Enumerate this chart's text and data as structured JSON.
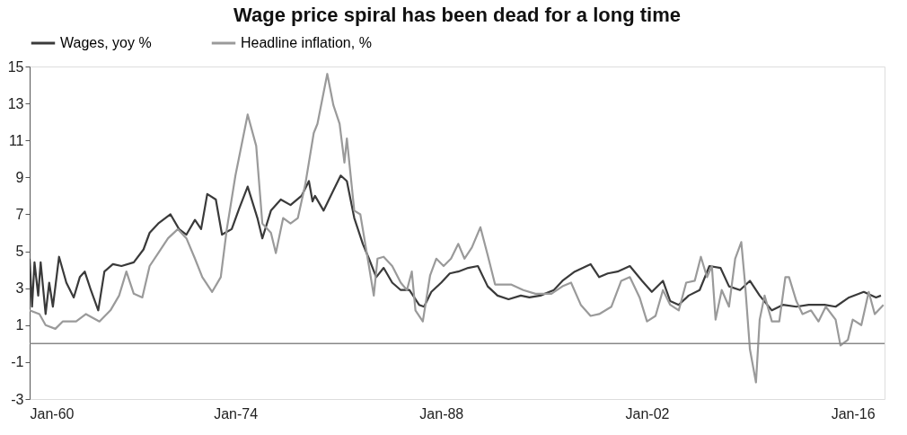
{
  "chart_data": {
    "type": "line",
    "title": "Wage price spiral has been dead for a long time",
    "xlim": [
      "1960-01",
      "2018-03"
    ],
    "xticks": [
      {
        "value": "1960-01",
        "label": "Jan-60"
      },
      {
        "value": "1974-01",
        "label": "Jan-74"
      },
      {
        "value": "1988-01",
        "label": "Jan-88"
      },
      {
        "value": "2002-01",
        "label": "Jan-02"
      },
      {
        "value": "2016-01",
        "label": "Jan-16"
      }
    ],
    "ylim": [
      -3,
      15
    ],
    "yticks": [
      -3,
      -1,
      1,
      3,
      5,
      7,
      9,
      11,
      13,
      15
    ],
    "grid": false,
    "legend": "top",
    "marker": "none",
    "line_style": "solid",
    "ref_lines": [
      {
        "axis": "y",
        "value": 0,
        "color": "#888888"
      }
    ],
    "series": [
      {
        "name": "Wages, yoy %",
        "color": "#3a3a3a",
        "x": [
          "1960-01",
          "1960-03",
          "1960-05",
          "1960-08",
          "1960-10",
          "1961-02",
          "1961-05",
          "1961-08",
          "1962-01",
          "1962-07",
          "1963-01",
          "1963-06",
          "1963-10",
          "1964-03",
          "1964-09",
          "1965-02",
          "1965-09",
          "1966-04",
          "1967-02",
          "1967-10",
          "1968-03",
          "1968-10",
          "1969-08",
          "1970-03",
          "1970-09",
          "1971-04",
          "1971-09",
          "1972-02",
          "1972-09",
          "1973-02",
          "1973-10",
          "1974-04",
          "1974-11",
          "1975-07",
          "1975-11",
          "1976-06",
          "1977-02",
          "1977-10",
          "1978-07",
          "1979-01",
          "1979-04",
          "1979-06",
          "1980-01",
          "1980-09",
          "1981-03",
          "1981-08",
          "1982-02",
          "1982-09",
          "1983-02",
          "1983-08",
          "1984-02",
          "1984-09",
          "1985-04",
          "1985-11",
          "1986-07",
          "1986-11",
          "1987-05",
          "1988-01",
          "1988-08",
          "1989-03",
          "1989-11",
          "1990-07",
          "1991-03",
          "1991-11",
          "1992-08",
          "1993-06",
          "1994-01",
          "1994-10",
          "1995-09",
          "1996-04",
          "1997-02",
          "1998-03",
          "1998-10",
          "1999-05",
          "2000-01",
          "2000-11",
          "2001-09",
          "2002-05",
          "2003-02",
          "2003-08",
          "2004-03",
          "2004-11",
          "2005-08",
          "2006-04",
          "2007-01",
          "2007-08",
          "2008-05",
          "2009-01",
          "2009-09",
          "2010-07",
          "2011-04",
          "2012-03",
          "2013-01",
          "2014-02",
          "2014-11",
          "2015-10",
          "2016-10",
          "2017-08",
          "2017-12"
        ],
        "values": [
          4.6,
          2.0,
          4.4,
          2.6,
          4.4,
          1.6,
          3.3,
          2.0,
          4.7,
          3.3,
          2.5,
          3.6,
          3.9,
          2.9,
          1.8,
          3.9,
          4.3,
          4.2,
          4.4,
          5.1,
          6.0,
          6.5,
          7.0,
          6.2,
          5.9,
          6.7,
          6.2,
          8.1,
          7.8,
          5.9,
          6.2,
          7.3,
          8.5,
          6.8,
          5.7,
          7.2,
          7.8,
          7.5,
          8.0,
          8.8,
          7.7,
          8.0,
          7.2,
          8.3,
          9.1,
          8.8,
          6.8,
          5.4,
          4.6,
          3.6,
          4.1,
          3.3,
          2.9,
          2.9,
          2.1,
          2.0,
          2.8,
          3.3,
          3.8,
          3.9,
          4.1,
          4.2,
          3.1,
          2.6,
          2.4,
          2.6,
          2.5,
          2.6,
          2.9,
          3.4,
          3.9,
          4.3,
          3.6,
          3.8,
          3.9,
          4.2,
          3.4,
          2.8,
          3.4,
          2.3,
          2.1,
          2.6,
          2.9,
          4.2,
          4.1,
          3.1,
          2.9,
          3.4,
          2.6,
          1.8,
          2.1,
          2.0,
          2.1,
          2.1,
          2.0,
          2.5,
          2.8,
          2.5,
          2.6
        ]
      },
      {
        "name": "Headline inflation, %",
        "color": "#9a9a9a",
        "x": [
          "1960-01",
          "1960-09",
          "1961-02",
          "1961-10",
          "1962-04",
          "1963-03",
          "1963-11",
          "1964-10",
          "1965-07",
          "1966-02",
          "1966-08",
          "1967-02",
          "1967-09",
          "1968-03",
          "1968-10",
          "1969-06",
          "1970-02",
          "1970-09",
          "1971-04",
          "1971-10",
          "1972-06",
          "1973-01",
          "1973-06",
          "1974-01",
          "1974-11",
          "1975-06",
          "1975-11",
          "1976-06",
          "1976-10",
          "1977-04",
          "1977-10",
          "1978-04",
          "1978-10",
          "1979-05",
          "1979-08",
          "1980-04",
          "1980-09",
          "1981-02",
          "1981-06",
          "1981-08",
          "1981-10",
          "1982-02",
          "1982-07",
          "1983-01",
          "1983-06",
          "1983-09",
          "1984-02",
          "1984-09",
          "1985-04",
          "1985-09",
          "1986-01",
          "1986-04",
          "1986-10",
          "1987-04",
          "1987-09",
          "1988-03",
          "1988-09",
          "1989-03",
          "1989-08",
          "1990-02",
          "1990-09",
          "1991-03",
          "1991-09",
          "1992-10",
          "1993-08",
          "1994-06",
          "1995-07",
          "1996-04",
          "1996-11",
          "1997-07",
          "1998-03",
          "1998-10",
          "1999-08",
          "2000-04",
          "2000-11",
          "2001-07",
          "2002-01",
          "2002-08",
          "2003-02",
          "2003-08",
          "2004-03",
          "2004-09",
          "2005-04",
          "2005-09",
          "2006-02",
          "2006-06",
          "2006-09",
          "2007-02",
          "2007-08",
          "2008-01",
          "2008-06",
          "2008-09",
          "2009-01",
          "2009-06",
          "2009-09",
          "2010-01",
          "2010-07",
          "2011-01",
          "2011-06",
          "2011-09",
          "2012-03",
          "2012-08",
          "2013-03",
          "2013-09",
          "2014-03",
          "2014-11",
          "2015-03",
          "2015-09",
          "2016-01",
          "2016-08",
          "2017-02",
          "2017-07",
          "2018-02"
        ],
        "values": [
          1.8,
          1.6,
          1.0,
          0.8,
          1.2,
          1.2,
          1.6,
          1.2,
          1.8,
          2.6,
          3.9,
          2.7,
          2.5,
          4.2,
          4.9,
          5.7,
          6.2,
          5.7,
          4.6,
          3.6,
          2.8,
          3.6,
          6.2,
          9.1,
          12.4,
          10.7,
          6.5,
          6.0,
          4.9,
          6.8,
          6.5,
          6.8,
          8.6,
          11.4,
          11.9,
          14.6,
          12.9,
          11.9,
          9.8,
          11.1,
          9.8,
          7.2,
          7.0,
          4.6,
          2.6,
          4.6,
          4.7,
          4.2,
          3.3,
          2.9,
          3.9,
          1.8,
          1.2,
          3.7,
          4.6,
          4.2,
          4.6,
          5.4,
          4.6,
          5.2,
          6.3,
          4.8,
          3.2,
          3.2,
          2.9,
          2.7,
          2.7,
          3.1,
          3.3,
          2.1,
          1.5,
          1.6,
          2.0,
          3.4,
          3.6,
          2.5,
          1.2,
          1.5,
          2.9,
          2.1,
          1.8,
          3.3,
          3.4,
          4.7,
          3.6,
          4.2,
          1.3,
          2.9,
          2.0,
          4.6,
          5.5,
          3.3,
          -0.3,
          -2.1,
          1.3,
          2.6,
          1.2,
          1.2,
          3.6,
          3.6,
          2.3,
          1.6,
          1.8,
          1.2,
          2.0,
          1.3,
          -0.1,
          0.2,
          1.3,
          1.0,
          2.8,
          1.6,
          2.1
        ]
      }
    ]
  }
}
